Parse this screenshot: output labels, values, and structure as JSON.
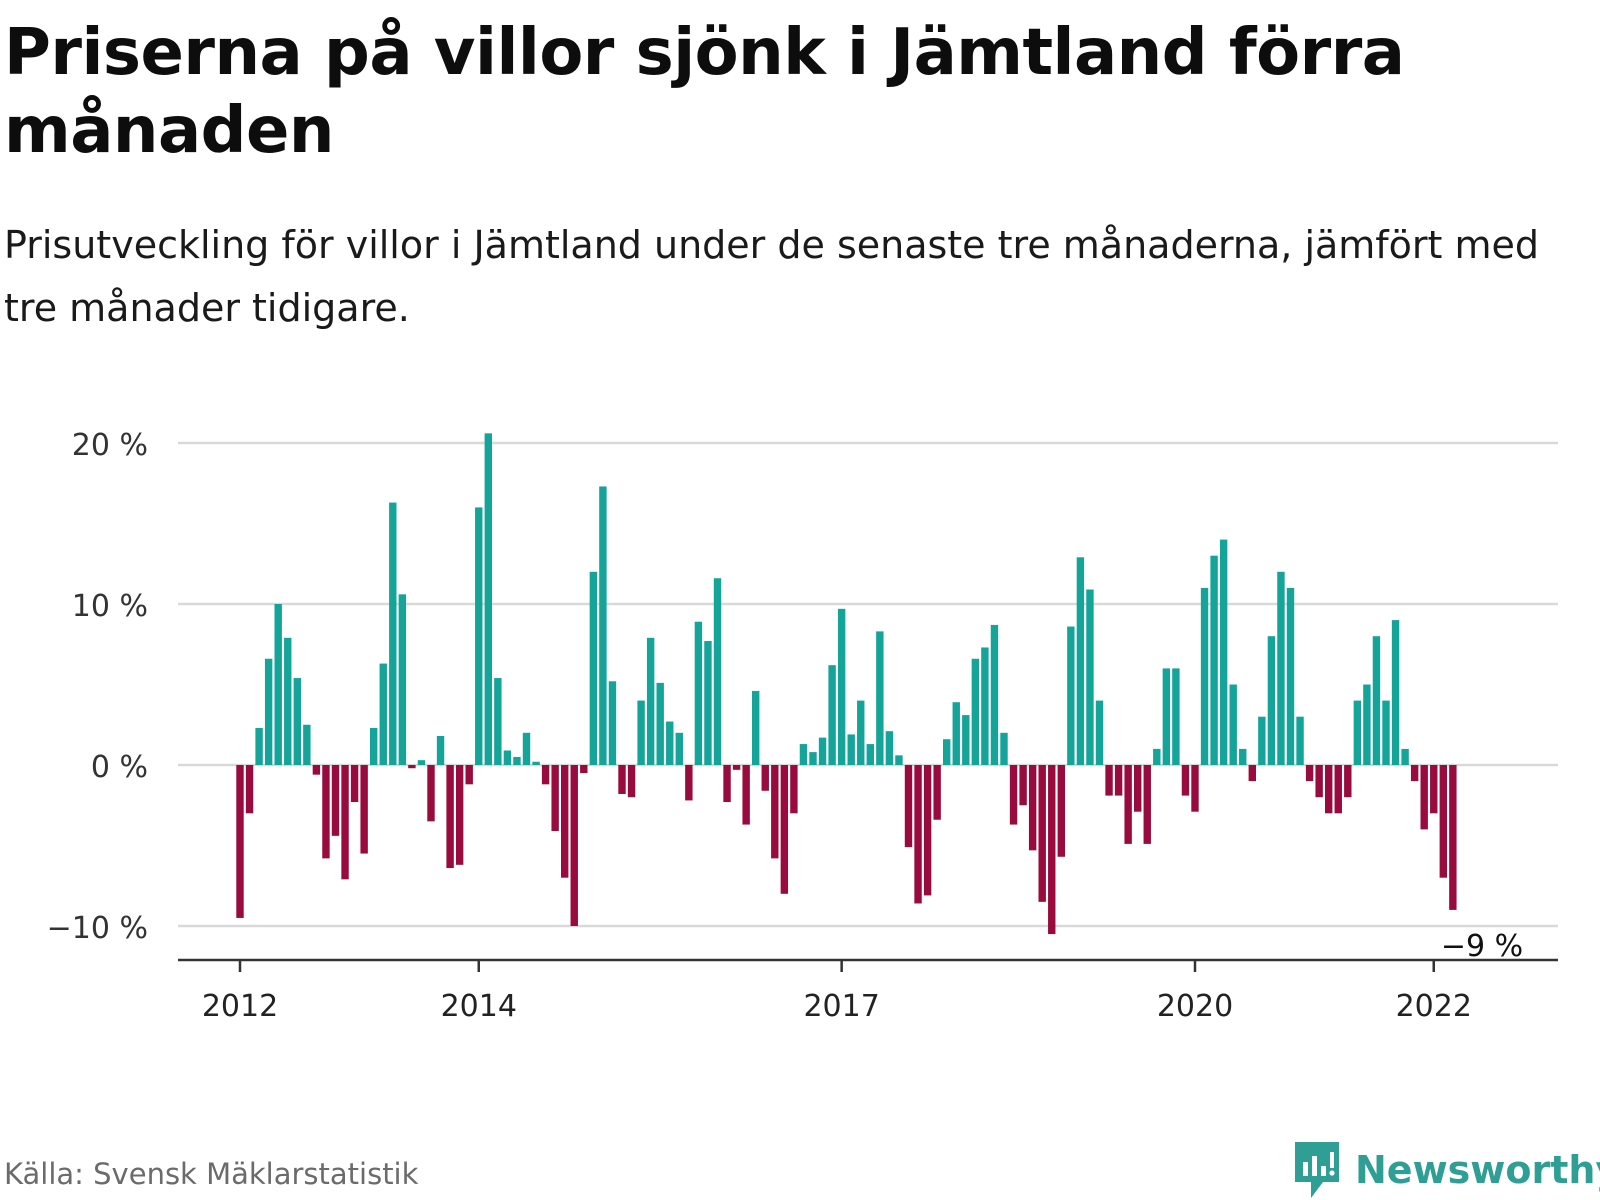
{
  "header": {
    "title": "Priserna på villor sjönk i Jämtland förra månaden",
    "subtitle": "Prisutveckling för villor i Jämtland under de senaste tre månaderna, jämfört med tre månader tidigare."
  },
  "footer": {
    "source": "Källa: Svensk Mäklarstatistik",
    "brand": "Newsworthy"
  },
  "colors": {
    "positive": "#14a49a",
    "negative": "#980b3c",
    "grid": "#d9d9d9",
    "axis": "#333333",
    "brand": "#2f9e95"
  },
  "chart_data": {
    "type": "bar",
    "y_unit": "%",
    "start": "2012-01",
    "frequency": "monthly",
    "values": [
      -9.5,
      -3,
      2.3,
      6.6,
      10,
      7.9,
      5.4,
      2.5,
      -0.6,
      -5.8,
      -4.4,
      -7.1,
      -2.3,
      -5.5,
      2.3,
      6.3,
      16.3,
      10.6,
      -0.2,
      0.3,
      -3.5,
      1.8,
      -6.4,
      -6.2,
      -1.2,
      16,
      20.6,
      5.4,
      0.9,
      0.5,
      2,
      0.2,
      -1.2,
      -4.1,
      -7,
      -10,
      -0.5,
      12,
      17.3,
      5.2,
      -1.8,
      -2,
      4,
      7.9,
      5.1,
      2.7,
      2,
      -2.2,
      8.9,
      7.7,
      11.6,
      -2.3,
      -0.3,
      -3.7,
      4.6,
      -1.6,
      -5.8,
      -8,
      -3,
      1.3,
      0.8,
      1.7,
      6.2,
      9.7,
      1.9,
      4,
      1.3,
      8.3,
      2.1,
      0.6,
      -5.1,
      -8.6,
      -8.1,
      -3.4,
      1.6,
      3.9,
      3.1,
      6.6,
      7.3,
      8.7,
      2,
      -3.7,
      -2.5,
      -5.3,
      -8.5,
      -10.5,
      -5.7,
      8.6,
      12.9,
      10.9,
      4,
      -1.9,
      -1.9,
      -4.9,
      -2.9,
      -4.9,
      1,
      6,
      6,
      -1.9,
      -2.9,
      11,
      13,
      14,
      5,
      1,
      -1,
      3,
      8,
      12,
      11,
      3,
      -1,
      -2,
      -3,
      -3,
      -2,
      4,
      5,
      8,
      4,
      9,
      1,
      -1,
      -4,
      -3,
      -7,
      -9
    ],
    "ylim": [
      -12,
      21
    ],
    "y_ticks": [
      20,
      10,
      0,
      -10
    ],
    "y_tick_labels": [
      "20 %",
      "10 %",
      "0 %",
      "−10 %"
    ],
    "x_tick_labels": [
      {
        "label": "2012",
        "index": 0
      },
      {
        "label": "2014",
        "index": 25
      },
      {
        "label": "2017",
        "index": 63
      },
      {
        "label": "2020",
        "index": 100
      },
      {
        "label": "2022",
        "index": 125
      }
    ],
    "annotation": {
      "text": "−9 %",
      "value": -9
    },
    "grid": true,
    "legend": "none"
  }
}
